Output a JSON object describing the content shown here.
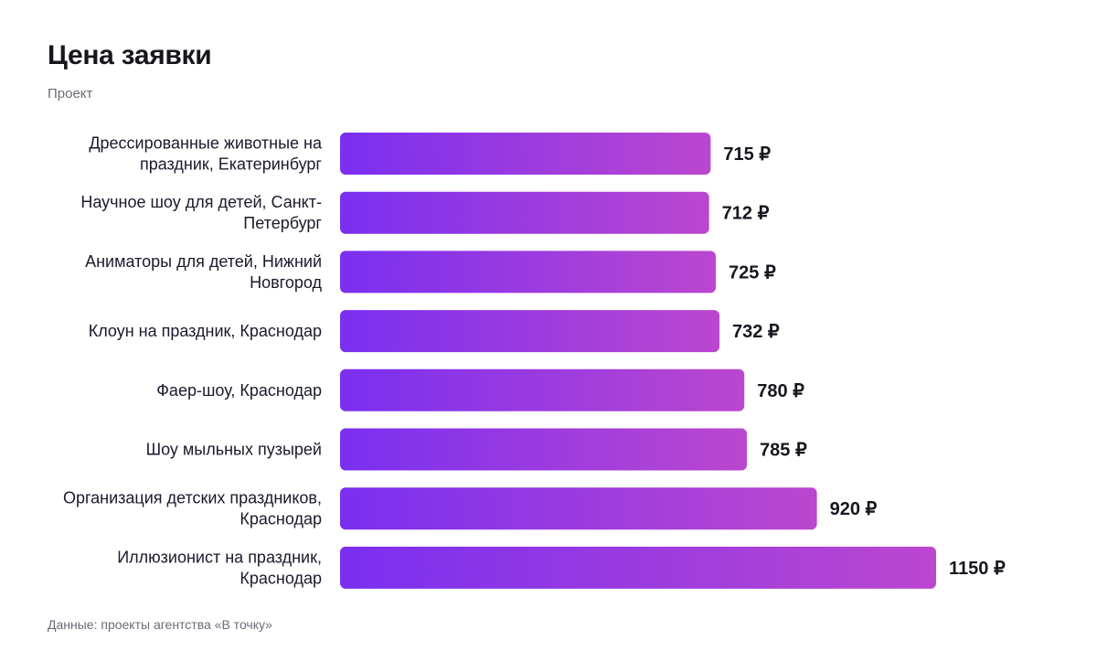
{
  "title": "Цена заявки",
  "subtitle": "Проект",
  "source": "Данные: проекты агентства «В точку»",
  "colors": {
    "bar_start": "#7a2ff0",
    "bar_end": "#bb47cf",
    "text": "#1a1a2e"
  },
  "chart_data": {
    "type": "bar",
    "orientation": "horizontal",
    "categories": [
      [
        "Дрессированные животные на",
        "праздник, Екатеринбург"
      ],
      [
        "Научное шоу для детей, Санкт-",
        "Петербург"
      ],
      [
        "Аниматоры для детей, Нижний",
        "Новгород"
      ],
      [
        "Клоун на праздник, Краснодар"
      ],
      [
        "Фаер-шоу, Краснодар"
      ],
      [
        "Шоу мыльных пузырей"
      ],
      [
        "Организация детских праздников,",
        "Краснодар"
      ],
      [
        "Иллюзионист на празднник, Краснодар"
      ]
    ],
    "values": [
      715,
      712,
      725,
      732,
      780,
      785,
      920,
      1150
    ],
    "value_labels": [
      "715 ₽",
      "712 ₽",
      "725 ₽",
      "732 ₽",
      "780 ₽",
      "785 ₽",
      "920 ₽",
      "1150 ₽"
    ],
    "unit": "₽"
  }
}
